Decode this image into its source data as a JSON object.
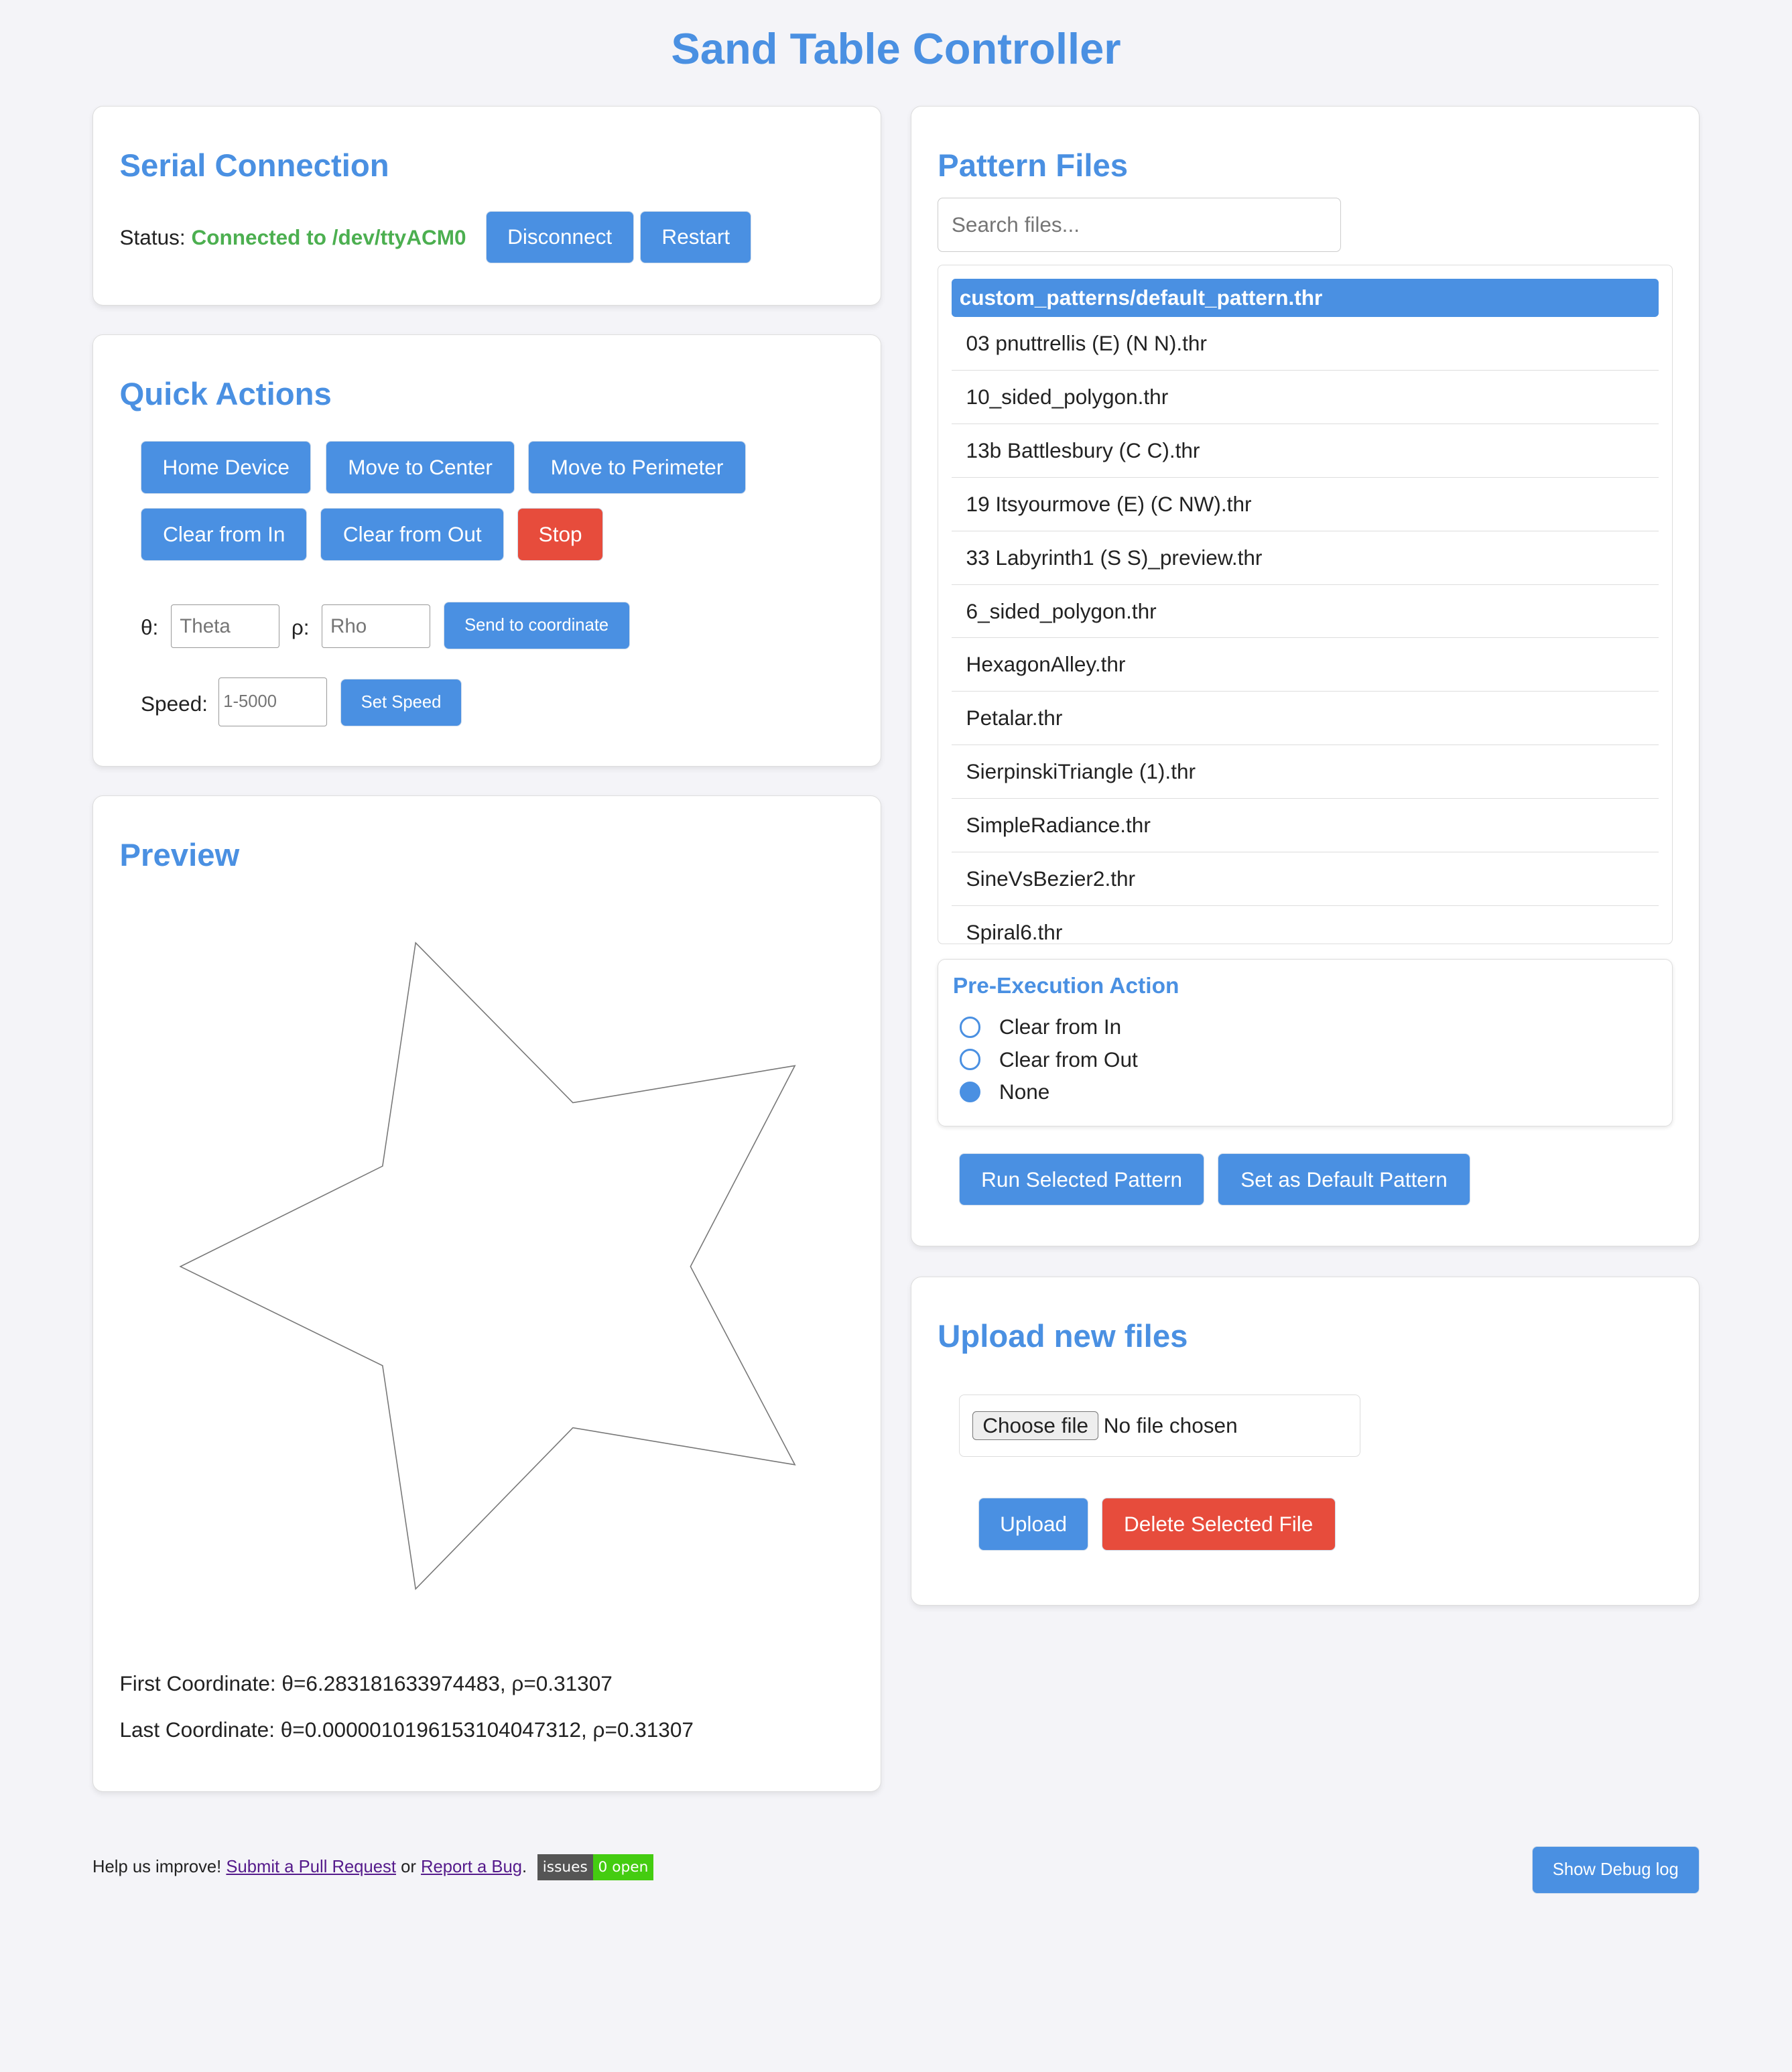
{
  "title": "Sand Table Controller",
  "serial": {
    "heading": "Serial Connection",
    "status_label": "Status:",
    "status_value": "Connected to /dev/ttyACM0",
    "status_color": "#4caf50",
    "disconnect": "Disconnect",
    "restart": "Restart"
  },
  "quick": {
    "heading": "Quick Actions",
    "home": "Home Device",
    "center": "Move to Center",
    "perimeter": "Move to Perimeter",
    "clear_in": "Clear from In",
    "clear_out": "Clear from Out",
    "stop": "Stop",
    "theta_label": "θ:",
    "theta_placeholder": "Theta",
    "rho_label": "ρ:",
    "rho_placeholder": "Rho",
    "send": "Send to coordinate",
    "speed_label": "Speed:",
    "speed_placeholder": "1-5000",
    "set_speed": "Set Speed"
  },
  "preview": {
    "heading": "Preview",
    "first": "First Coordinate: θ=6.283181633974483, ρ=0.31307",
    "last": "Last Coordinate: θ=0.000001019615310404731​2, ρ=0.31307"
  },
  "patterns": {
    "heading": "Pattern Files",
    "search_placeholder": "Search files...",
    "files": [
      "custom_patterns/default_pattern.thr",
      "03 pnuttrellis (E) (N N).thr",
      "10_sided_polygon.thr",
      "13b Battlesbury (C C).thr",
      "19 Itsyourmove (E) (C NW).thr",
      "33 Labyrinth1 (S S)_preview.thr",
      "6_sided_polygon.thr",
      "HexagonAlley.thr",
      "Petalar.thr",
      "SierpinskiTriangle (1).thr",
      "SimpleRadiance.thr",
      "SineVsBezier2.thr",
      "Spiral6.thr"
    ],
    "pre_heading": "Pre-Execution Action",
    "options": [
      "Clear from In",
      "Clear from Out",
      "None"
    ],
    "selected_option": "None",
    "run": "Run Selected Pattern",
    "set_default": "Set as Default Pattern"
  },
  "upload": {
    "heading": "Upload new files",
    "choose": "Choose file",
    "no_file": "No file chosen",
    "upload": "Upload",
    "delete": "Delete Selected File"
  },
  "footer": {
    "help": "Help us improve!",
    "pr_link": "Submit a Pull Request",
    "or": "or",
    "bug_link": "Report a Bug",
    "period": ".",
    "badge_label": "issues",
    "badge_value": "0 open",
    "debug": "Show Debug log"
  }
}
